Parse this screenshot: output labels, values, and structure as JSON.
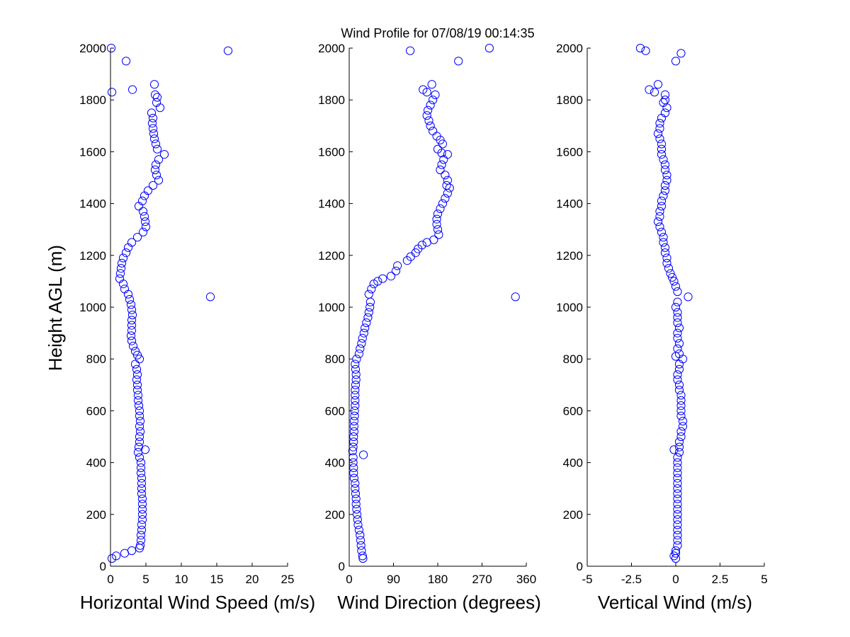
{
  "figure": {
    "title": "Wind Profile for  07/08/19 00:14:35",
    "marker_color": "#0000ff",
    "background": "#ffffff"
  },
  "chart_data": [
    {
      "type": "scatter",
      "id": "speed",
      "xlabel": "Horizontal Wind Speed (m/s)",
      "ylabel": "Height AGL (m)",
      "xlim": [
        0,
        25
      ],
      "ylim": [
        0,
        2000
      ],
      "xticks": [
        0,
        5,
        10,
        15,
        20,
        25
      ],
      "xtick_labels": [
        "0",
        "5",
        "10",
        "15",
        "20",
        "25"
      ],
      "yticks": [
        0,
        200,
        400,
        600,
        800,
        1000,
        1200,
        1400,
        1600,
        1800,
        2000
      ],
      "ytick_labels": [
        "0",
        "200",
        "400",
        "600",
        "800",
        "1000",
        "1200",
        "1400",
        "1600",
        "1800",
        "2000"
      ],
      "grid": false,
      "points": [
        [
          0.1,
          2000
        ],
        [
          2.2,
          1950
        ],
        [
          16.6,
          1990
        ],
        [
          0.2,
          1830
        ],
        [
          3.1,
          1840
        ],
        [
          6.2,
          1860
        ],
        [
          6.3,
          1820
        ],
        [
          6.6,
          1810
        ],
        [
          6.5,
          1790
        ],
        [
          7.0,
          1770
        ],
        [
          5.8,
          1750
        ],
        [
          6.0,
          1730
        ],
        [
          5.9,
          1710
        ],
        [
          6.0,
          1690
        ],
        [
          6.1,
          1670
        ],
        [
          6.2,
          1650
        ],
        [
          6.4,
          1630
        ],
        [
          6.6,
          1610
        ],
        [
          7.6,
          1590
        ],
        [
          6.8,
          1570
        ],
        [
          6.4,
          1550
        ],
        [
          6.3,
          1530
        ],
        [
          6.5,
          1510
        ],
        [
          6.8,
          1490
        ],
        [
          6.0,
          1470
        ],
        [
          5.3,
          1450
        ],
        [
          4.8,
          1430
        ],
        [
          4.5,
          1410
        ],
        [
          4.0,
          1390
        ],
        [
          4.6,
          1370
        ],
        [
          4.8,
          1350
        ],
        [
          4.9,
          1330
        ],
        [
          5.0,
          1310
        ],
        [
          4.6,
          1290
        ],
        [
          3.8,
          1270
        ],
        [
          3.0,
          1250
        ],
        [
          2.5,
          1230
        ],
        [
          2.2,
          1210
        ],
        [
          1.8,
          1190
        ],
        [
          1.6,
          1170
        ],
        [
          1.5,
          1150
        ],
        [
          1.4,
          1130
        ],
        [
          1.3,
          1110
        ],
        [
          1.8,
          1090
        ],
        [
          2.0,
          1070
        ],
        [
          2.5,
          1050
        ],
        [
          14.1,
          1040
        ],
        [
          2.7,
          1030
        ],
        [
          2.9,
          1010
        ],
        [
          3.0,
          990
        ],
        [
          3.1,
          970
        ],
        [
          3.0,
          950
        ],
        [
          3.0,
          930
        ],
        [
          3.0,
          910
        ],
        [
          2.9,
          890
        ],
        [
          3.0,
          870
        ],
        [
          3.2,
          850
        ],
        [
          3.5,
          830
        ],
        [
          3.8,
          815
        ],
        [
          4.1,
          800
        ],
        [
          3.5,
          780
        ],
        [
          3.7,
          760
        ],
        [
          3.8,
          740
        ],
        [
          3.7,
          720
        ],
        [
          3.8,
          700
        ],
        [
          3.8,
          680
        ],
        [
          3.9,
          660
        ],
        [
          3.9,
          640
        ],
        [
          4.0,
          620
        ],
        [
          4.1,
          600
        ],
        [
          4.1,
          580
        ],
        [
          4.2,
          560
        ],
        [
          4.1,
          540
        ],
        [
          4.2,
          520
        ],
        [
          4.1,
          500
        ],
        [
          4.1,
          480
        ],
        [
          4.0,
          460
        ],
        [
          4.9,
          450
        ],
        [
          3.9,
          440
        ],
        [
          4.1,
          420
        ],
        [
          4.3,
          400
        ],
        [
          4.3,
          380
        ],
        [
          4.3,
          360
        ],
        [
          4.4,
          340
        ],
        [
          4.4,
          320
        ],
        [
          4.4,
          300
        ],
        [
          4.4,
          280
        ],
        [
          4.5,
          260
        ],
        [
          4.5,
          240
        ],
        [
          4.5,
          220
        ],
        [
          4.5,
          200
        ],
        [
          4.5,
          180
        ],
        [
          4.4,
          160
        ],
        [
          4.4,
          140
        ],
        [
          4.3,
          120
        ],
        [
          4.3,
          100
        ],
        [
          4.2,
          80
        ],
        [
          4.1,
          70
        ],
        [
          3.0,
          60
        ],
        [
          2.0,
          50
        ],
        [
          0.8,
          40
        ],
        [
          0.2,
          30
        ]
      ]
    },
    {
      "type": "scatter",
      "id": "direction",
      "xlabel": "Wind Direction (degrees)",
      "ylabel": "",
      "xlim": [
        0,
        360
      ],
      "ylim": [
        0,
        2000
      ],
      "xticks": [
        0,
        90,
        180,
        270,
        360
      ],
      "xtick_labels": [
        "0",
        "90",
        "180",
        "270",
        "360"
      ],
      "yticks": [
        0,
        200,
        400,
        600,
        800,
        1000,
        1200,
        1400,
        1600,
        1800,
        2000
      ],
      "ytick_labels": [
        "0",
        "200",
        "400",
        "600",
        "800",
        "1000",
        "1200",
        "1400",
        "1600",
        "1800",
        "2000"
      ],
      "grid": false,
      "points": [
        [
          285,
          2000
        ],
        [
          124,
          1990
        ],
        [
          222,
          1950
        ],
        [
          168,
          1860
        ],
        [
          150,
          1840
        ],
        [
          158,
          1830
        ],
        [
          175,
          1820
        ],
        [
          170,
          1800
        ],
        [
          165,
          1780
        ],
        [
          160,
          1760
        ],
        [
          158,
          1740
        ],
        [
          162,
          1720
        ],
        [
          165,
          1700
        ],
        [
          170,
          1680
        ],
        [
          178,
          1660
        ],
        [
          185,
          1645
        ],
        [
          190,
          1630
        ],
        [
          180,
          1610
        ],
        [
          188,
          1595
        ],
        [
          200,
          1590
        ],
        [
          192,
          1570
        ],
        [
          188,
          1550
        ],
        [
          185,
          1530
        ],
        [
          195,
          1510
        ],
        [
          200,
          1490
        ],
        [
          198,
          1470
        ],
        [
          204,
          1460
        ],
        [
          200,
          1440
        ],
        [
          195,
          1420
        ],
        [
          190,
          1400
        ],
        [
          185,
          1380
        ],
        [
          180,
          1360
        ],
        [
          178,
          1340
        ],
        [
          178,
          1320
        ],
        [
          180,
          1300
        ],
        [
          182,
          1280
        ],
        [
          172,
          1260
        ],
        [
          158,
          1250
        ],
        [
          148,
          1240
        ],
        [
          140,
          1225
        ],
        [
          135,
          1210
        ],
        [
          125,
          1195
        ],
        [
          118,
          1180
        ],
        [
          98,
          1160
        ],
        [
          95,
          1140
        ],
        [
          85,
          1120
        ],
        [
          68,
          1110
        ],
        [
          58,
          1100
        ],
        [
          50,
          1090
        ],
        [
          45,
          1070
        ],
        [
          40,
          1050
        ],
        [
          338,
          1040
        ],
        [
          43,
          1020
        ],
        [
          42,
          1000
        ],
        [
          40,
          980
        ],
        [
          38,
          960
        ],
        [
          35,
          940
        ],
        [
          32,
          920
        ],
        [
          30,
          900
        ],
        [
          27,
          880
        ],
        [
          25,
          860
        ],
        [
          22,
          840
        ],
        [
          20,
          820
        ],
        [
          15,
          800
        ],
        [
          12,
          780
        ],
        [
          13,
          760
        ],
        [
          14,
          740
        ],
        [
          14,
          720
        ],
        [
          13,
          700
        ],
        [
          12,
          680
        ],
        [
          12,
          660
        ],
        [
          12,
          640
        ],
        [
          12,
          620
        ],
        [
          11,
          600
        ],
        [
          11,
          580
        ],
        [
          10,
          560
        ],
        [
          10,
          540
        ],
        [
          10,
          520
        ],
        [
          9,
          500
        ],
        [
          9,
          480
        ],
        [
          8,
          460
        ],
        [
          7,
          445
        ],
        [
          29,
          430
        ],
        [
          8,
          420
        ],
        [
          8,
          400
        ],
        [
          9,
          380
        ],
        [
          9,
          360
        ],
        [
          10,
          340
        ],
        [
          12,
          320
        ],
        [
          12,
          300
        ],
        [
          13,
          280
        ],
        [
          14,
          260
        ],
        [
          14,
          240
        ],
        [
          15,
          220
        ],
        [
          16,
          200
        ],
        [
          17,
          180
        ],
        [
          18,
          160
        ],
        [
          20,
          140
        ],
        [
          22,
          120
        ],
        [
          23,
          100
        ],
        [
          24,
          80
        ],
        [
          25,
          60
        ],
        [
          27,
          40
        ],
        [
          28,
          30
        ]
      ]
    },
    {
      "type": "scatter",
      "id": "vertical",
      "xlabel": "Vertical Wind (m/s)",
      "ylabel": "",
      "xlim": [
        -5,
        5
      ],
      "ylim": [
        0,
        2000
      ],
      "xticks": [
        -5,
        -2.5,
        0,
        2.5,
        5
      ],
      "xtick_labels": [
        "-5",
        "-2.5",
        "0",
        "2.5",
        "5"
      ],
      "yticks": [
        0,
        200,
        400,
        600,
        800,
        1000,
        1200,
        1400,
        1600,
        1800,
        2000
      ],
      "ytick_labels": [
        "0",
        "200",
        "400",
        "600",
        "800",
        "1000",
        "1200",
        "1400",
        "1600",
        "1800",
        "2000"
      ],
      "grid": false,
      "points": [
        [
          -2.0,
          2000
        ],
        [
          -1.7,
          1990
        ],
        [
          0.3,
          1980
        ],
        [
          0.0,
          1950
        ],
        [
          -1.0,
          1860
        ],
        [
          -1.5,
          1840
        ],
        [
          -1.2,
          1830
        ],
        [
          -0.6,
          1820
        ],
        [
          -0.6,
          1800
        ],
        [
          -0.7,
          1790
        ],
        [
          -0.5,
          1770
        ],
        [
          -0.6,
          1750
        ],
        [
          -0.8,
          1730
        ],
        [
          -0.9,
          1710
        ],
        [
          -0.9,
          1690
        ],
        [
          -1.0,
          1670
        ],
        [
          -0.9,
          1650
        ],
        [
          -0.8,
          1630
        ],
        [
          -0.8,
          1610
        ],
        [
          -0.8,
          1590
        ],
        [
          -0.7,
          1570
        ],
        [
          -0.6,
          1550
        ],
        [
          -0.6,
          1530
        ],
        [
          -0.5,
          1510
        ],
        [
          -0.5,
          1490
        ],
        [
          -0.6,
          1470
        ],
        [
          -0.6,
          1450
        ],
        [
          -0.7,
          1430
        ],
        [
          -0.8,
          1410
        ],
        [
          -0.8,
          1390
        ],
        [
          -0.9,
          1370
        ],
        [
          -0.9,
          1350
        ],
        [
          -1.0,
          1330
        ],
        [
          -0.9,
          1310
        ],
        [
          -0.8,
          1290
        ],
        [
          -0.7,
          1270
        ],
        [
          -0.7,
          1250
        ],
        [
          -0.6,
          1230
        ],
        [
          -0.6,
          1210
        ],
        [
          -0.5,
          1190
        ],
        [
          -0.5,
          1170
        ],
        [
          -0.4,
          1150
        ],
        [
          -0.3,
          1130
        ],
        [
          -0.2,
          1115
        ],
        [
          -0.1,
          1100
        ],
        [
          0.0,
          1080
        ],
        [
          0.1,
          1060
        ],
        [
          0.7,
          1040
        ],
        [
          0.1,
          1020
        ],
        [
          0.0,
          1000
        ],
        [
          0.1,
          980
        ],
        [
          0.1,
          960
        ],
        [
          0.1,
          940
        ],
        [
          0.2,
          920
        ],
        [
          0.1,
          900
        ],
        [
          0.1,
          880
        ],
        [
          0.2,
          860
        ],
        [
          0.1,
          840
        ],
        [
          0.2,
          820
        ],
        [
          0.0,
          810
        ],
        [
          0.4,
          800
        ],
        [
          0.2,
          780
        ],
        [
          0.2,
          760
        ],
        [
          0.1,
          740
        ],
        [
          0.1,
          720
        ],
        [
          0.2,
          700
        ],
        [
          0.2,
          680
        ],
        [
          0.3,
          660
        ],
        [
          0.3,
          640
        ],
        [
          0.3,
          620
        ],
        [
          0.3,
          600
        ],
        [
          0.3,
          580
        ],
        [
          0.4,
          560
        ],
        [
          0.4,
          540
        ],
        [
          0.3,
          520
        ],
        [
          0.3,
          500
        ],
        [
          0.2,
          480
        ],
        [
          0.2,
          460
        ],
        [
          -0.1,
          450
        ],
        [
          0.2,
          440
        ],
        [
          0.1,
          420
        ],
        [
          0.1,
          400
        ],
        [
          0.1,
          380
        ],
        [
          0.1,
          360
        ],
        [
          0.1,
          340
        ],
        [
          0.1,
          320
        ],
        [
          0.1,
          300
        ],
        [
          0.1,
          280
        ],
        [
          0.1,
          260
        ],
        [
          0.1,
          240
        ],
        [
          0.1,
          220
        ],
        [
          0.1,
          200
        ],
        [
          0.1,
          180
        ],
        [
          0.1,
          160
        ],
        [
          0.1,
          140
        ],
        [
          0.1,
          120
        ],
        [
          0.1,
          100
        ],
        [
          0.1,
          80
        ],
        [
          0.0,
          60
        ],
        [
          0.0,
          50
        ],
        [
          -0.1,
          40
        ],
        [
          0.0,
          30
        ]
      ]
    }
  ]
}
